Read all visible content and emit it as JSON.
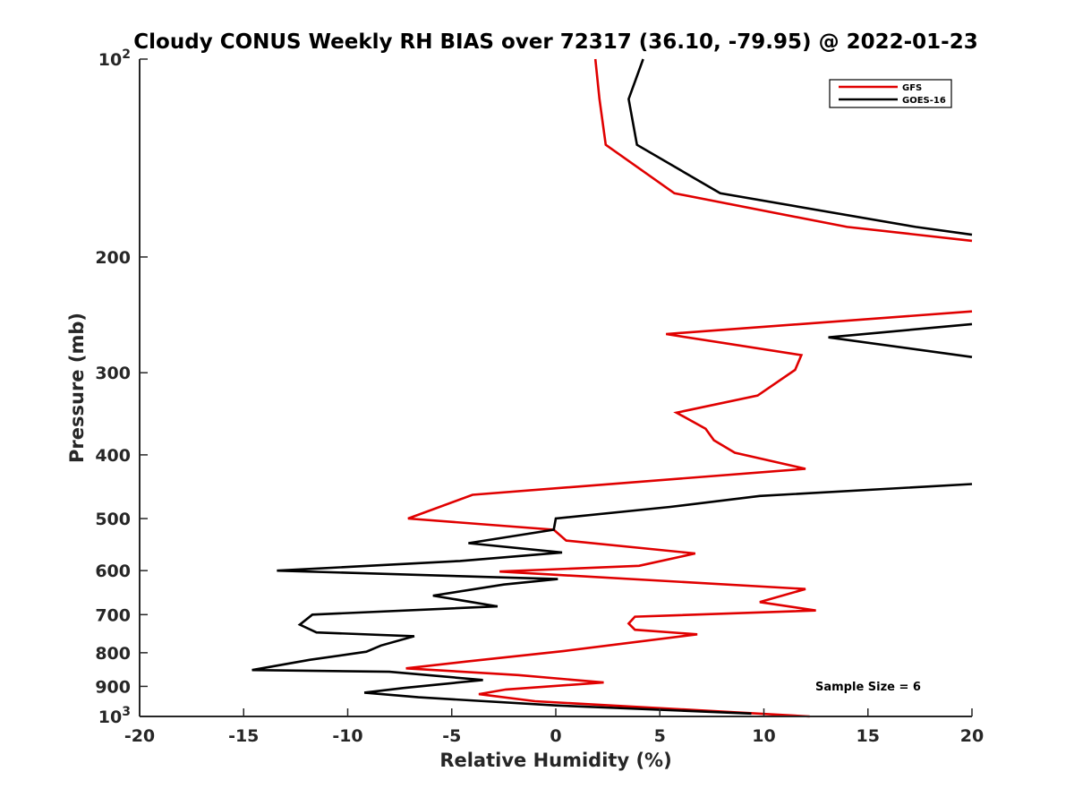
{
  "chart_data": {
    "type": "line",
    "orientation": "vertical-profile",
    "title": "Cloudy CONUS Weekly RH BIAS over 72317 (36.10, -79.95) @ 2022-01-23",
    "xlabel": "Relative Humidity (%)",
    "ylabel": "Pressure (mb)",
    "xlim": [
      -20,
      20
    ],
    "ylim": [
      100,
      1000
    ],
    "y_scale": "log",
    "y_reversed": true,
    "grid": false,
    "legend_position": "top-right",
    "x_ticks": [
      "-20",
      "-15",
      "-10",
      "-5",
      "0",
      "5",
      "10",
      "15",
      "20"
    ],
    "y_ticks": [
      {
        "value": 100,
        "base": "10",
        "exp": "2"
      },
      {
        "value": 200,
        "label": "200"
      },
      {
        "value": 300,
        "label": "300"
      },
      {
        "value": 400,
        "label": "400"
      },
      {
        "value": 500,
        "label": "500"
      },
      {
        "value": 600,
        "label": "600"
      },
      {
        "value": 700,
        "label": "700"
      },
      {
        "value": 800,
        "label": "800"
      },
      {
        "value": 900,
        "label": "900"
      },
      {
        "value": 1000,
        "base": "10",
        "exp": "3"
      }
    ],
    "annotation": "Sample Size = 6",
    "series": [
      {
        "name": "GFS",
        "color": "#e00000",
        "segments": [
          [
            [
              1.9,
              100
            ],
            [
              2.1,
              115
            ],
            [
              2.4,
              135
            ],
            [
              5.7,
              160
            ],
            [
              14,
              180
            ],
            [
              20,
              189
            ]
          ],
          [
            [
              20,
              242
            ],
            [
              5.3,
              262
            ],
            [
              11.8,
              282
            ],
            [
              11.5,
              297
            ],
            [
              9.7,
              325
            ],
            [
              5.8,
              345
            ],
            [
              7.2,
              365
            ],
            [
              7.6,
              380
            ],
            [
              8.6,
              397
            ],
            [
              12,
              420
            ],
            [
              -4,
              460
            ],
            [
              -7.1,
              500
            ],
            [
              -0.1,
              520
            ],
            [
              0.5,
              540
            ],
            [
              6.7,
              565
            ],
            [
              4,
              590
            ],
            [
              -2.7,
              602
            ],
            [
              12,
              640
            ],
            [
              9.8,
              670
            ],
            [
              12.5,
              690
            ],
            [
              3.8,
              705
            ],
            [
              3.5,
              722
            ],
            [
              3.8,
              738
            ],
            [
              6.8,
              750
            ],
            [
              0.4,
              795
            ],
            [
              -4.3,
              825
            ],
            [
              -7.2,
              845
            ],
            [
              -1.8,
              865
            ],
            [
              2.3,
              888
            ],
            [
              -2.4,
              910
            ],
            [
              -3.7,
              925
            ],
            [
              -1,
              948
            ],
            [
              12.2,
              1000
            ]
          ]
        ]
      },
      {
        "name": "GOES-16",
        "color": "#000000",
        "segments": [
          [
            [
              4.2,
              100
            ],
            [
              3.5,
              115
            ],
            [
              3.9,
              135
            ],
            [
              7.9,
              160
            ],
            [
              17.3,
              180
            ],
            [
              20,
              185
            ]
          ],
          [
            [
              20,
              253
            ],
            [
              13.1,
              265
            ],
            [
              20,
              284
            ]
          ],
          [
            [
              20,
              443
            ],
            [
              9.8,
              462
            ],
            [
              5.5,
              480
            ],
            [
              0,
              500
            ],
            [
              -0.1,
              520
            ],
            [
              -4.2,
              545
            ],
            [
              0.3,
              563
            ],
            [
              -4.6,
              580
            ],
            [
              -13.4,
              600
            ],
            [
              0.1,
              618
            ],
            [
              -2.5,
              630
            ],
            [
              -5.9,
              655
            ],
            [
              -2.8,
              680
            ],
            [
              -11.7,
              700
            ],
            [
              -12.3,
              725
            ],
            [
              -11.5,
              745
            ],
            [
              -6.8,
              755
            ],
            [
              -8.4,
              780
            ],
            [
              -9.1,
              797
            ],
            [
              -11.8,
              820
            ],
            [
              -14.6,
              850
            ],
            [
              -8,
              855
            ],
            [
              -3.5,
              880
            ],
            [
              -7.3,
              905
            ],
            [
              -9.2,
              920
            ],
            [
              -6.6,
              935
            ],
            [
              0,
              962
            ],
            [
              9.4,
              990
            ]
          ]
        ]
      }
    ]
  }
}
